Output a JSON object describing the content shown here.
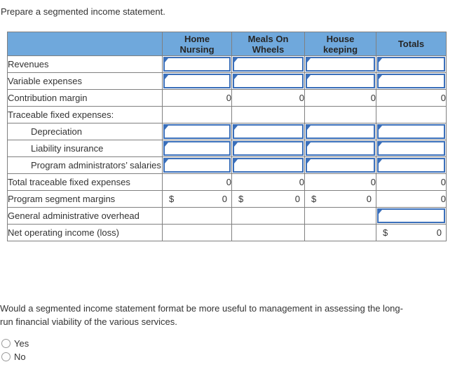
{
  "page": {
    "title": "Prepare a segmented income statement."
  },
  "table": {
    "headers": [
      "Home\nNursing",
      "Meals On\nWheels",
      "House\nkeeping",
      "Totals"
    ],
    "rows": [
      {
        "label": "Revenues"
      },
      {
        "label": "Variable expenses"
      },
      {
        "label": "Contribution margin",
        "values": [
          "0",
          "0",
          "0",
          "0"
        ]
      },
      {
        "label": "Traceable fixed expenses:"
      },
      {
        "label": "Depreciation"
      },
      {
        "label": "Liability insurance"
      },
      {
        "label": "Program administrators’ salaries"
      },
      {
        "label": "Total traceable fixed expenses",
        "values": [
          "0",
          "0",
          "0",
          "0"
        ]
      },
      {
        "label": "Program segment margins",
        "currency": "$",
        "values": [
          "0",
          "0",
          "0",
          "0"
        ]
      },
      {
        "label": "General administrative overhead"
      },
      {
        "label": "Net operating income (loss)",
        "currency": "$",
        "total": "0"
      }
    ]
  },
  "question": {
    "line1": "Would a segmented income statement format be more useful to management in assessing the long-",
    "line2": "run financial viability of the various services."
  },
  "options": [
    {
      "label": "Yes"
    },
    {
      "label": "No"
    }
  ],
  "colors": {
    "header_bg": "#6fa8dc",
    "input_border": "#3a6fba",
    "grid_border": "#808080",
    "accounting_rule": "#000000"
  }
}
